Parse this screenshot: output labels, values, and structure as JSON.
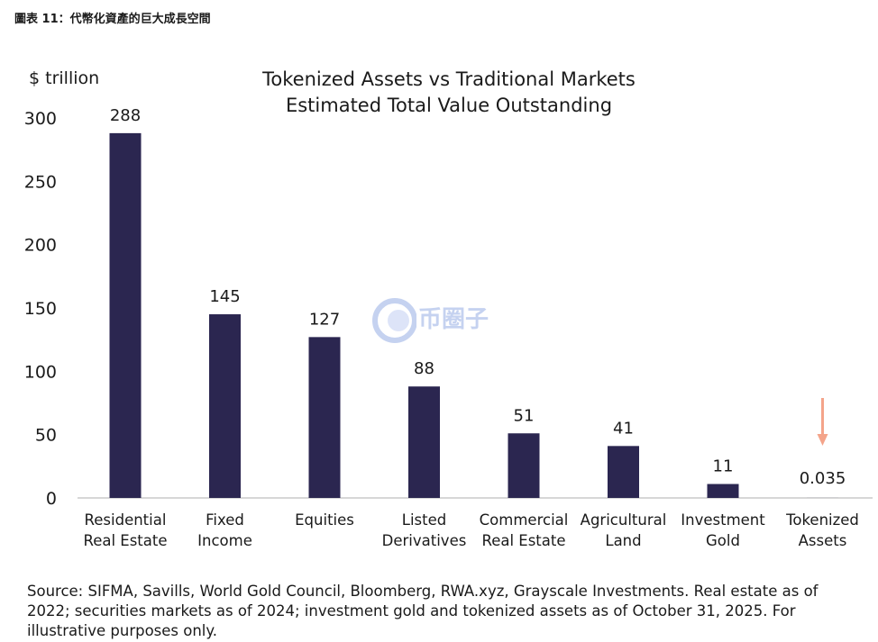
{
  "figure_label": "圖表 11：代幣化資產的巨大成長空間",
  "unit_label": "$ trillion",
  "source_note": "Source: SIFMA, Savills, World Gold Council, Bloomberg, RWA.xyz, Grayscale Investments. Real estate as of 2022; securities markets as of 2024; investment gold and tokenized assets as of October 31, 2025. For illustrative purposes only.",
  "watermark_text": "币圈子",
  "colors": {
    "bar": "#2b2650",
    "arrow": "#f4a48a",
    "axis": "#bfbfbf"
  },
  "chart_data": {
    "type": "bar",
    "title": "Tokenized Assets vs Traditional Markets",
    "subtitle": "Estimated Total Value Outstanding",
    "ylabel": "$ trillion",
    "ylim": [
      0,
      300
    ],
    "yticks": [
      0,
      50,
      100,
      150,
      200,
      250,
      300
    ],
    "grid": false,
    "categories": [
      [
        "Residential",
        "Real Estate"
      ],
      [
        "Fixed",
        "Income"
      ],
      [
        "Equities"
      ],
      [
        "Listed",
        "Derivatives"
      ],
      [
        "Commercial",
        "Real Estate"
      ],
      [
        "Agricultural",
        "Land"
      ],
      [
        "Investment",
        "Gold"
      ],
      [
        "Tokenized",
        "Assets"
      ]
    ],
    "values": [
      288,
      145,
      127,
      88,
      51,
      41,
      11,
      0.035
    ],
    "value_labels": [
      "288",
      "145",
      "127",
      "88",
      "51",
      "41",
      "11",
      "0.035"
    ],
    "annotations": [
      {
        "type": "arrow-down",
        "category_index": 7
      }
    ]
  }
}
